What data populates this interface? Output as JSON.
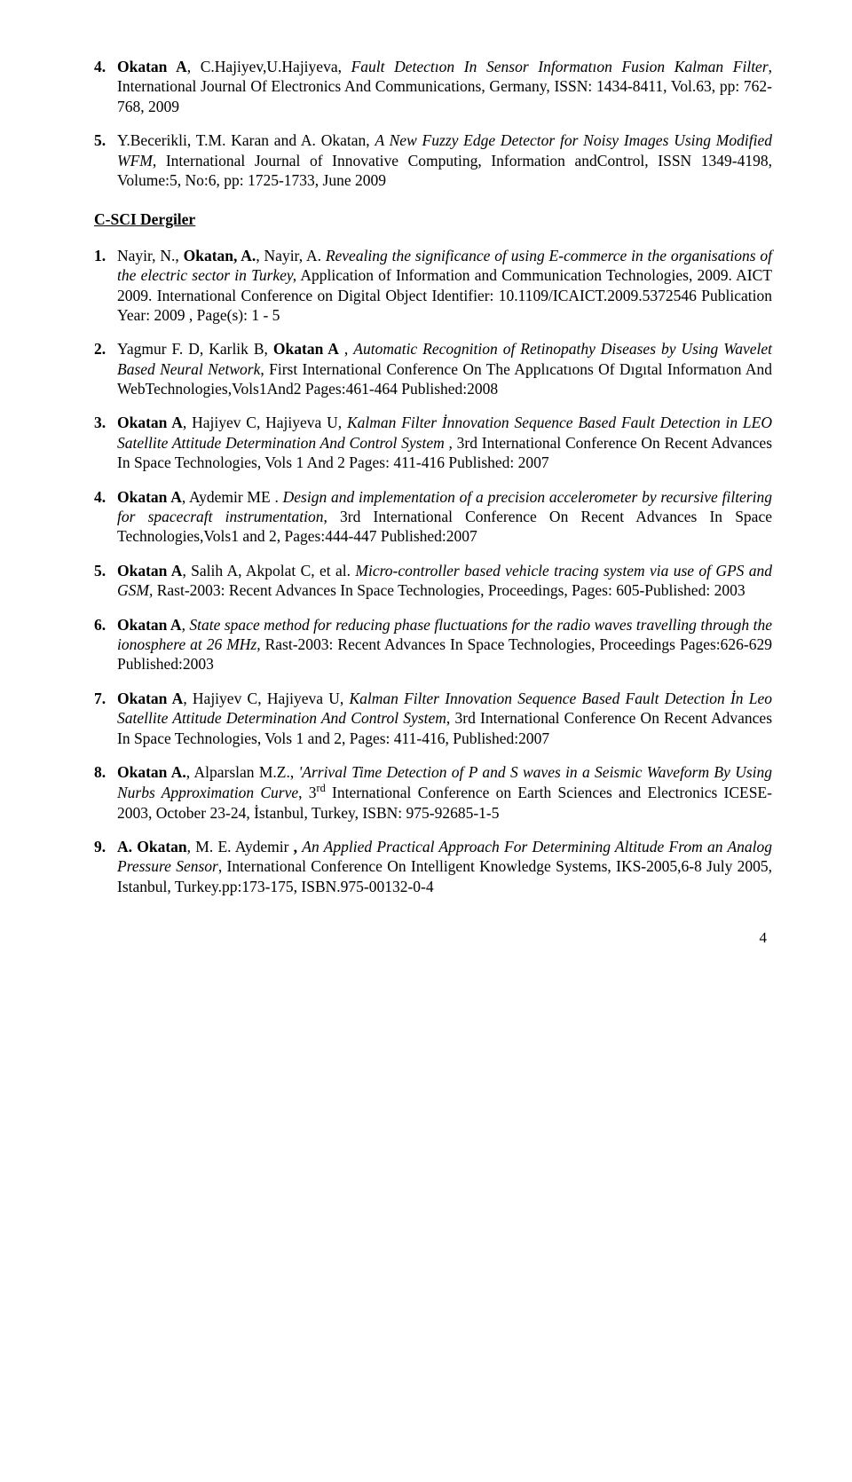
{
  "sectionA": {
    "items": [
      {
        "num": "4.",
        "segments": [
          {
            "t": "Okatan A",
            "b": true
          },
          {
            "t": ", C.Hajiyev,U.Hajiyeva, "
          },
          {
            "t": "Fault Detectıon In Sensor Informatıon Fusion Kalman Filter",
            "i": true
          },
          {
            "t": ", International Journal Of Electronics And Communications, Germany, ISSN: 1434-8411, Vol.63, pp: 762-768, 2009"
          }
        ]
      },
      {
        "num": "5.",
        "segments": [
          {
            "t": "Y.Becerikli, T.M. Karan and A. Okatan, "
          },
          {
            "t": "A New Fuzzy Edge Detector for Noisy Images Using Modified WFM",
            "i": true
          },
          {
            "t": ", International Journal of Innovative Computing, Information andControl, ISSN 1349-4198, Volume:5, No:6, pp: 1725-1733, June 2009"
          }
        ]
      }
    ]
  },
  "heading": "C-SCI Dergiler",
  "sectionB": {
    "items": [
      {
        "num": "1.",
        "segments": [
          {
            "t": "Nayir, N., "
          },
          {
            "t": "Okatan, A.",
            "b": true
          },
          {
            "t": ", Nayir, A. "
          },
          {
            "t": "Revealing the significance of using E-commerce in the organisations of the electric sector in Turkey,",
            "i": true
          },
          {
            "t": " Application of Information and Communication Technologies, 2009. AICT 2009. International Conference on Digital Object Identifier: 10.1109/ICAICT.2009.5372546 Publication Year: 2009 , Page(s): 1 - 5"
          }
        ]
      },
      {
        "num": "2.",
        "segments": [
          {
            "t": "Yagmur F. D, Karlik B, "
          },
          {
            "t": "Okatan A",
            "b": true
          },
          {
            "t": " , "
          },
          {
            "t": "Automatic Recognition of Retinopathy Diseases by Using Wavelet Based Neural Network",
            "i": true
          },
          {
            "t": ", First International Conference On The Applıcatıons Of Dıgıtal Informatıon And WebTechnologies,Vols1And2 Pages:461-464  Published:2008"
          }
        ]
      },
      {
        "num": "3.",
        "segments": [
          {
            "t": "Okatan A",
            "b": true
          },
          {
            "t": ", Hajiyev C, Hajiyeva U, "
          },
          {
            "t": "Kalman Filter İnnovation Sequence Based Fault Detection in LEO Satellite Attitude Determination And Control System ,",
            "i": true
          },
          {
            "t": " 3rd International Conference On Recent Advances In Space Technologies, Vols 1 And 2  Pages: 411-416 Published: 2007"
          }
        ]
      },
      {
        "num": "4.",
        "segments": [
          {
            "t": "Okatan A",
            "b": true
          },
          {
            "t": ", Aydemir ME . "
          },
          {
            "t": "Design and implementation of a precision accelerometer by recursive filtering for spacecraft instrumentation",
            "i": true
          },
          {
            "t": ", 3rd International Conference On Recent Advances In Space Technologies,Vols1 and 2,  Pages:444-447  Published:2007"
          }
        ]
      },
      {
        "num": "5.",
        "segments": [
          {
            "t": "Okatan A",
            "b": true
          },
          {
            "t": ", Salih A, Akpolat C, et al. "
          },
          {
            "t": "Micro-controller based vehicle tracing system via use of GPS and GSM,",
            "i": true
          },
          {
            "t": " Rast-2003: Recent Advances In Space Technologies, Proceedings, Pages: 605-Published: 2003"
          }
        ]
      },
      {
        "num": "6.",
        "segments": [
          {
            "t": "Okatan A",
            "b": true
          },
          {
            "t": ", State space method for reducing phase fluctuations for the radio waves travelling through the ionosphere at 26 MHz,",
            "i": true
          },
          {
            "t": " Rast-2003: Recent Advances In Space Technologies, Proceedings Pages:626-629  Published:2003"
          }
        ]
      },
      {
        "num": "7.",
        "segments": [
          {
            "t": "Okatan A",
            "b": true
          },
          {
            "t": ", Hajiyev C, Hajiyeva U, "
          },
          {
            "t": "Kalman Filter Innovation Sequence Based Fault Detection İn Leo Satellite Attitude Determination And Control System",
            "i": true
          },
          {
            "t": ", 3rd International Conference On Recent Advances In Space Technologies, Vols 1 and 2, Pages: 411-416, Published:2007"
          }
        ]
      },
      {
        "num": "8.",
        "segments": [
          {
            "t": "Okatan A.",
            "b": true
          },
          {
            "t": ", Alparslan M.Z., "
          },
          {
            "t": "'Arrival Time Detection  of P and S waves in a Seismic Waveform By Using Nurbs Approximation Curve",
            "i": true
          },
          {
            "t": ", 3"
          },
          {
            "t": "rd",
            "sup": true
          },
          {
            "t": " International Conference on Earth Sciences and Electronics  ICESE-2003, October 23-24, İstanbul, Turkey, ISBN: 975-92685-1-5"
          }
        ]
      },
      {
        "num": "9.",
        "segments": [
          {
            "t": "A. Okatan",
            "b": true
          },
          {
            "t": ", M. E. Aydemir "
          },
          {
            "t": ",",
            "b": true
          },
          {
            "t": " "
          },
          {
            "t": "An Applied Practical Approach For Determining Altitude From an Analog Pressure Sensor",
            "i": true
          },
          {
            "t": ", International Conference On Intelligent Knowledge Systems, IKS-2005,6-8 July 2005, Istanbul, Turkey.pp:173-175, ISBN.975-00132-0-4"
          }
        ]
      }
    ]
  },
  "pageNumber": "4"
}
